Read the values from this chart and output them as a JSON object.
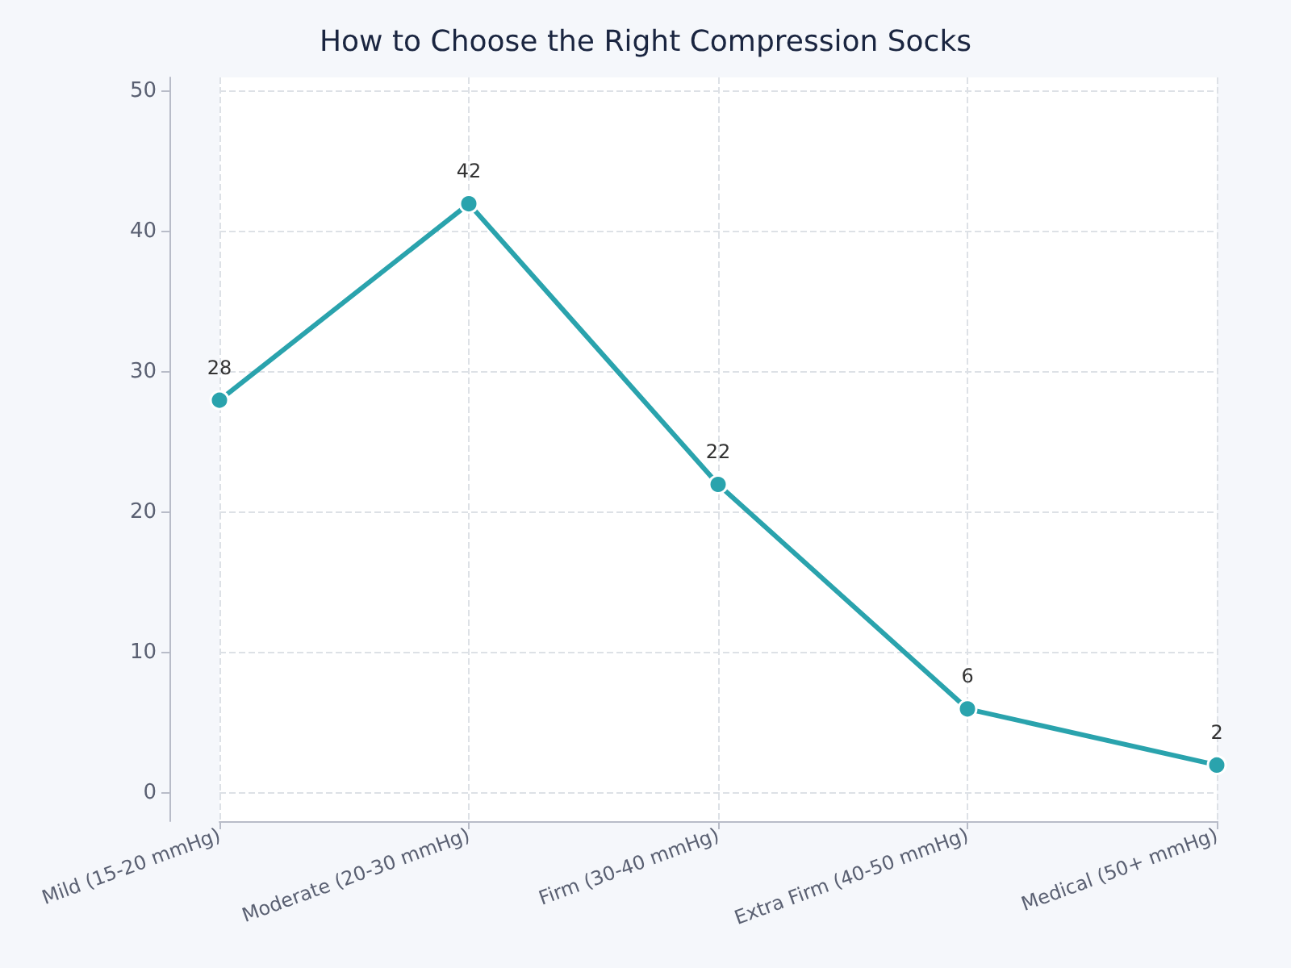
{
  "chart_data": {
    "type": "line",
    "title": "How to Choose the Right Compression Socks",
    "categories": [
      "Mild (15-20 mmHg)",
      "Moderate (20-30 mmHg)",
      "Firm (30-40 mmHg)",
      "Extra Firm (40-50 mmHg)",
      "Medical (50+ mmHg)"
    ],
    "series": [
      {
        "color": "#2aa3ad",
        "values": [
          28,
          42,
          22,
          6,
          2
        ]
      }
    ],
    "ylim": [
      -2,
      51
    ],
    "yticks": [
      0,
      10,
      20,
      30,
      40,
      50
    ],
    "grid": true,
    "marker": "circle",
    "line_style": "solid",
    "data_labels": true
  }
}
